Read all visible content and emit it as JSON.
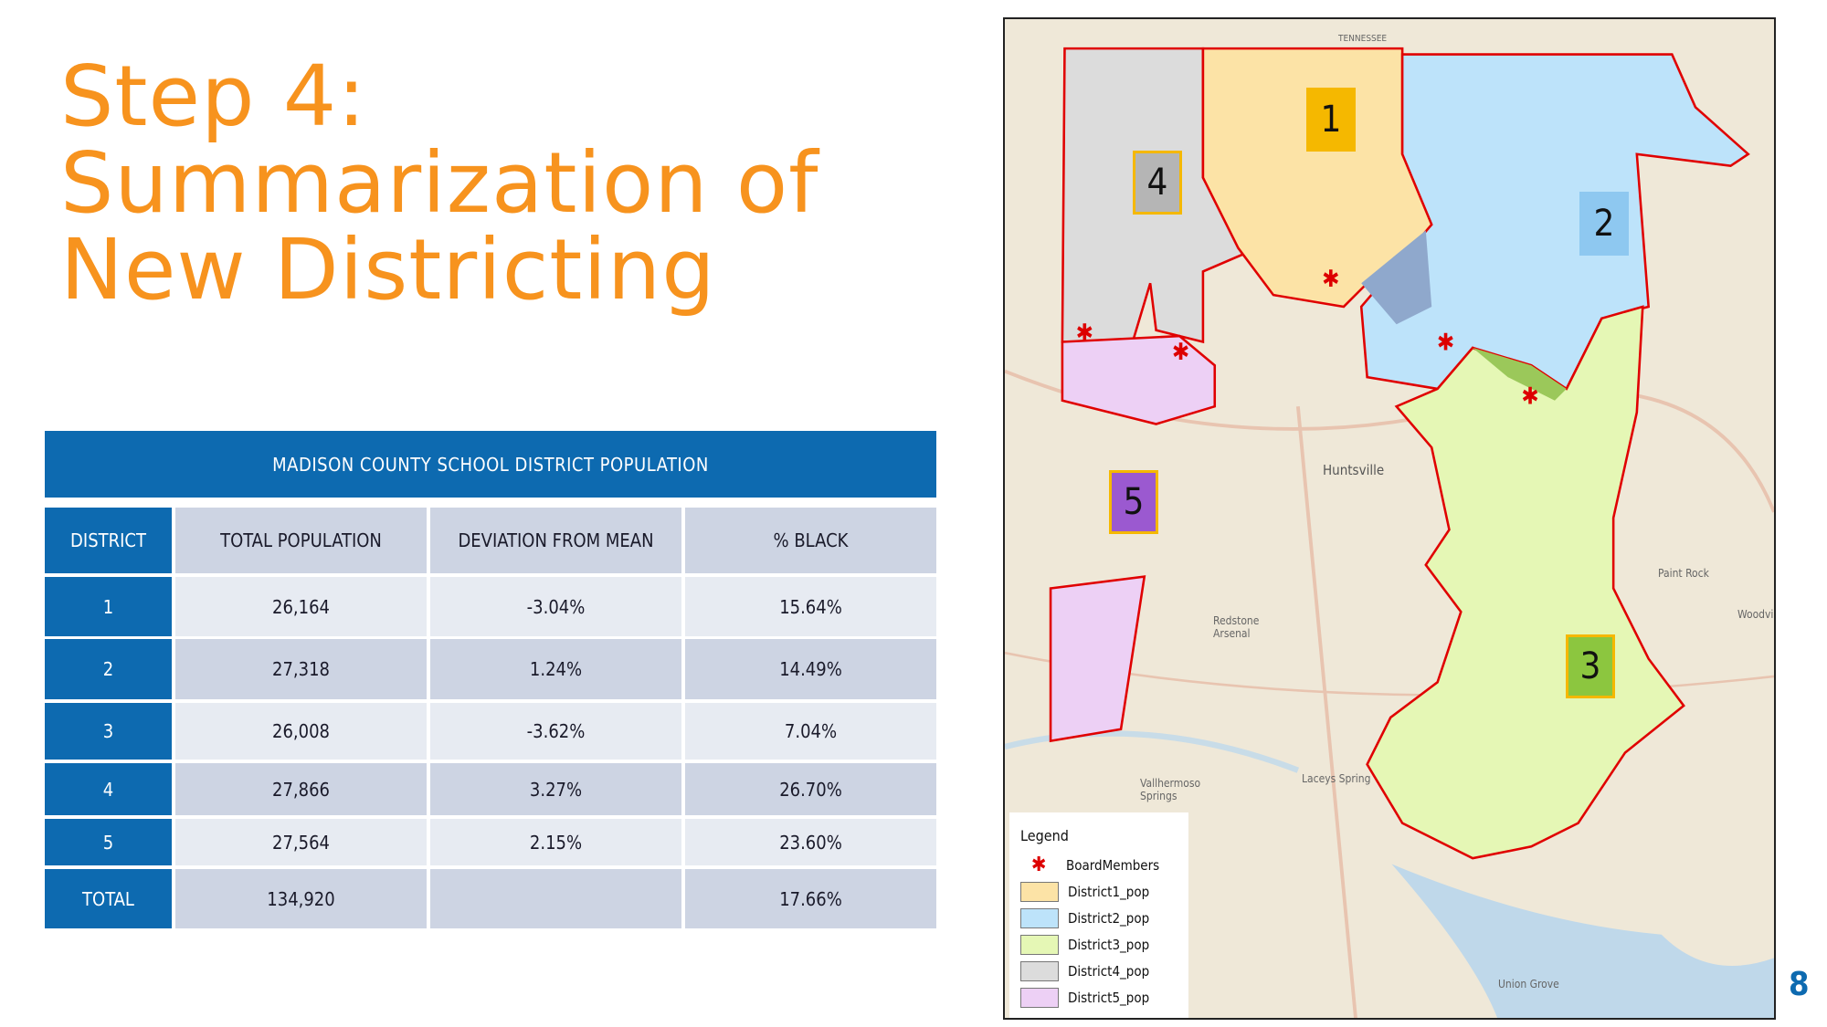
{
  "title_lines": [
    "Step 4:",
    "Summarization of",
    "New Districting"
  ],
  "table": {
    "title": "MADISON COUNTY SCHOOL DISTRICT POPULATION",
    "headers": [
      "DISTRICT",
      "TOTAL POPULATION",
      "DEVIATION FROM MEAN",
      "% BLACK"
    ],
    "rows": [
      [
        "1",
        "26,164",
        "-3.04%",
        "15.64%"
      ],
      [
        "2",
        "27,318",
        "1.24%",
        "14.49%"
      ],
      [
        "3",
        "26,008",
        "-3.62%",
        "7.04%"
      ],
      [
        "4",
        "27,866",
        "3.27%",
        "26.70%"
      ],
      [
        "5",
        "27,564",
        "2.15%",
        "23.60%"
      ],
      [
        "TOTAL",
        "134,920",
        "",
        "17.66%"
      ]
    ]
  },
  "map": {
    "district_labels": [
      "1",
      "2",
      "3",
      "4",
      "5"
    ],
    "district_colors": {
      "1": "#FCE3A6",
      "2": "#BDE3FA",
      "3": "#E5F7B5",
      "4": "#DCDCDC",
      "5": "#EDD0F5"
    },
    "label_box_colors": {
      "1": "#F5B800",
      "2": "#8EC8F0",
      "3": "#8CC63F",
      "4": "#B5B5B5",
      "5": "#9B59D0"
    },
    "boundary_color": "#E00000",
    "places": [
      "TENNESSEE",
      "Huntsville",
      "Paint Rock",
      "Woodville",
      "Redstone Arsenal",
      "Vallhermoso Springs",
      "Laceys Spring",
      "Union Grove"
    ],
    "legend": {
      "title": "Legend",
      "items": [
        {
          "label": "BoardMembers",
          "icon": "asterisk-icon",
          "color": "#DD0000"
        },
        {
          "label": "District1_pop",
          "color": "#FCE3A6"
        },
        {
          "label": "District2_pop",
          "color": "#BDE3FA"
        },
        {
          "label": "District3_pop",
          "color": "#E5F7B5"
        },
        {
          "label": "District4_pop",
          "color": "#DCDCDC"
        },
        {
          "label": "District5_pop",
          "color": "#EDD0F5"
        }
      ]
    }
  },
  "page_number": "8",
  "accent_color": "#F7931E",
  "table_color": "#0D6AB0"
}
